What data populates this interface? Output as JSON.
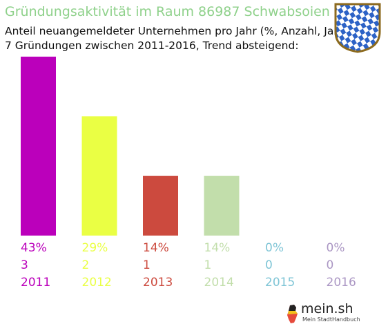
{
  "header": {
    "title": "Gründungsaktivität im Raum 86987 Schwabsoien",
    "subtitle_line1": "Anteil neuangemeldeter Unternehmen pro Jahr (%, Anzahl, Jahr)",
    "subtitle_line2": "7 Gründungen zwischen 2011-2016, Trend absteigend:"
  },
  "logo": {
    "name": "mein.sh",
    "tagline": "Mein StadtHandbuch"
  },
  "chart_data": {
    "type": "bar",
    "categories": [
      "2011",
      "2012",
      "2013",
      "2014",
      "2015",
      "2016"
    ],
    "values": [
      3,
      2,
      1,
      1,
      0,
      0
    ],
    "percent_labels": [
      "43%",
      "29%",
      "14%",
      "14%",
      "0%",
      "0%"
    ],
    "count_labels": [
      "3",
      "2",
      "1",
      "1",
      "0",
      "0"
    ],
    "colors": [
      "#bb00bb",
      "#eaff44",
      "#cc4a3e",
      "#c2deab",
      "#7fc5d6",
      "#ab97c4"
    ],
    "ylim": [
      0,
      3
    ],
    "grid": false,
    "legend": "none"
  },
  "colors": {
    "title": "#8fd18b",
    "crest_blue": "#2c62c6",
    "crest_border": "#8c6a1e"
  }
}
